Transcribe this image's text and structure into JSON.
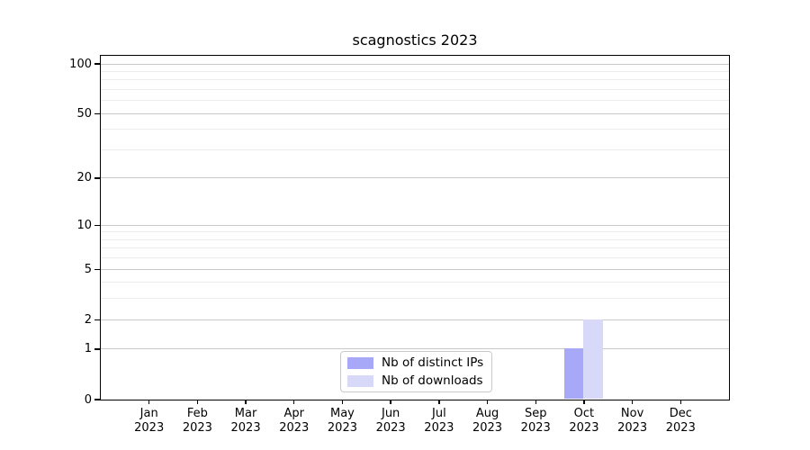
{
  "title": "scagnostics 2023",
  "chart_data": {
    "type": "bar",
    "title": "scagnostics 2023",
    "categories": [
      {
        "month": "Jan",
        "year": "2023"
      },
      {
        "month": "Feb",
        "year": "2023"
      },
      {
        "month": "Mar",
        "year": "2023"
      },
      {
        "month": "Apr",
        "year": "2023"
      },
      {
        "month": "May",
        "year": "2023"
      },
      {
        "month": "Jun",
        "year": "2023"
      },
      {
        "month": "Jul",
        "year": "2023"
      },
      {
        "month": "Aug",
        "year": "2023"
      },
      {
        "month": "Sep",
        "year": "2023"
      },
      {
        "month": "Oct",
        "year": "2023"
      },
      {
        "month": "Nov",
        "year": "2023"
      },
      {
        "month": "Dec",
        "year": "2023"
      }
    ],
    "series": [
      {
        "name": "Nb of distinct IPs",
        "color": "#a8a8f8",
        "values": [
          0,
          0,
          0,
          0,
          0,
          0,
          0,
          0,
          0,
          1,
          0,
          0
        ]
      },
      {
        "name": "Nb of downloads",
        "color": "#d8d8f8",
        "values": [
          0,
          0,
          0,
          0,
          0,
          0,
          0,
          0,
          0,
          2,
          0,
          0
        ]
      }
    ],
    "y_scale": "log1p",
    "ylim": [
      0,
      112
    ],
    "y_major_ticks": [
      100,
      50,
      20,
      10,
      5,
      2,
      1,
      0
    ],
    "y_minor_gridlines": [
      90,
      80,
      70,
      60,
      40,
      30,
      9,
      8,
      7,
      6,
      4,
      3
    ],
    "grid": true,
    "legend_position": "bottom-center",
    "xlabel": "",
    "ylabel": ""
  },
  "colors": {
    "axis": "#000000",
    "major_grid": "#c8c8c8",
    "minor_grid": "#ececec",
    "legend_border": "#c9c9c9",
    "background": "#ffffff"
  }
}
